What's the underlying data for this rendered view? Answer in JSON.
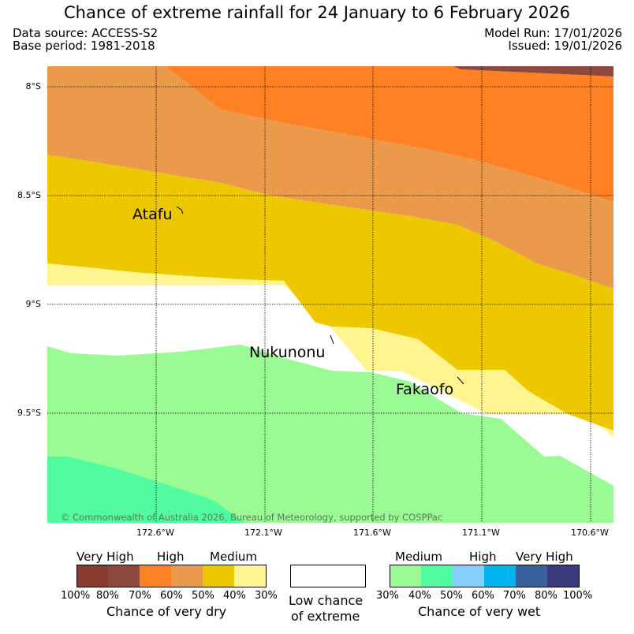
{
  "title": "Chance of extreme rainfall for 24 January to 6 February 2026",
  "data_source": "Data source: ACCESS-S2",
  "base_period": "Base period: 1981-2018",
  "model_run": "Model Run: 17/01/2026",
  "issued": "Issued: 19/01/2026",
  "map": {
    "lat_ticks": [
      "8°S",
      "8.5°S",
      "9°S",
      "9.5°S"
    ],
    "lon_ticks": [
      "172.6°W",
      "172.1°W",
      "171.6°W",
      "171.1°W",
      "170.6°W"
    ],
    "places": [
      "Atafu",
      "Nukunonu",
      "Fakaofo"
    ],
    "copyright": "© Commonwealth of Australia 2026, Bureau of Meteorology, supported by COSPPac"
  },
  "legend": {
    "dry": {
      "headers": [
        "Very High",
        "High",
        "Medium"
      ],
      "percents": [
        "100%",
        "80%",
        "70%",
        "60%",
        "50%",
        "40%",
        "30%"
      ],
      "colors": [
        "#8b3a2f",
        "#8b4a3c",
        "#ff8124",
        "#eb9a4c",
        "#edc800",
        "#fff590"
      ],
      "title": "Chance of very dry"
    },
    "neutral": {
      "line1": "Low chance",
      "line2": "of extreme"
    },
    "wet": {
      "headers": [
        "Medium",
        "High",
        "Very High"
      ],
      "percents": [
        "30%",
        "40%",
        "50%",
        "60%",
        "70%",
        "80%",
        "100%"
      ],
      "colors": [
        "#9afb95",
        "#52fb9f",
        "#87cefa",
        "#00b2ee",
        "#3a5f9d",
        "#3d3a7c"
      ],
      "title": "Chance of very wet"
    }
  }
}
